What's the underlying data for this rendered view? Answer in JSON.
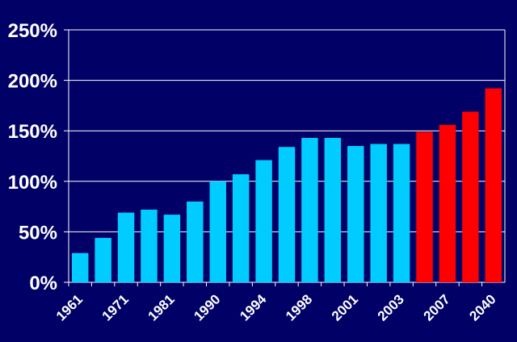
{
  "chart_data": {
    "type": "bar",
    "title": "",
    "xlabel": "",
    "ylabel": "",
    "categories": [
      "1961",
      "",
      "1971",
      "",
      "1981",
      "",
      "1990",
      "",
      "1994",
      "",
      "1998",
      "",
      "2001",
      "",
      "2003",
      "",
      "2007",
      "",
      "2040"
    ],
    "values": [
      29,
      44,
      69,
      72,
      67,
      80,
      100,
      107,
      121,
      134,
      143,
      143,
      135,
      137,
      137,
      149,
      156,
      169,
      192
    ],
    "ylim": [
      0,
      250
    ],
    "yticks": [
      "0%",
      "50%",
      "100%",
      "150%",
      "200%",
      "250%"
    ],
    "grid": true,
    "colors": {
      "background": "#000066",
      "historical_bar": "#00ccff",
      "projected_bar": "#ff0000",
      "gridline": "#ffffff",
      "text": "#ffffff"
    },
    "projected_from_index": 15
  }
}
